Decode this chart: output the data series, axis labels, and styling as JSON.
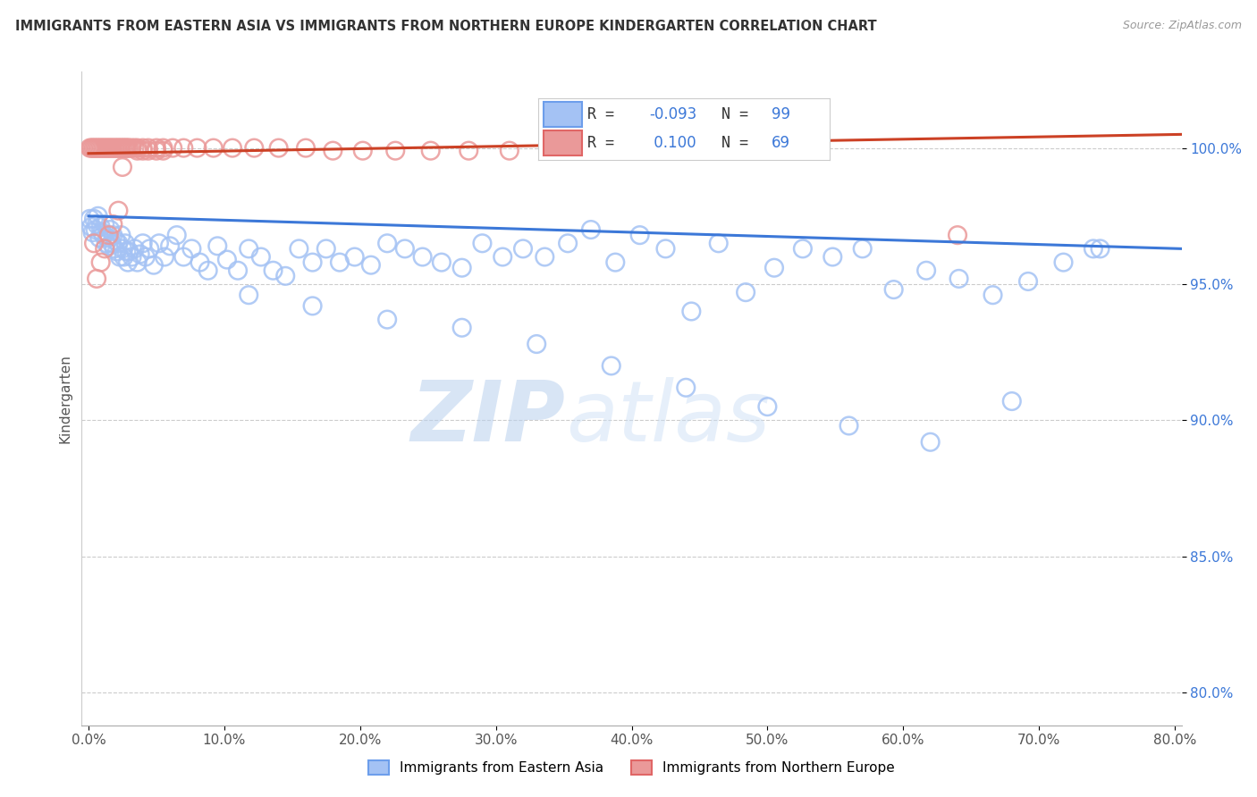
{
  "title": "IMMIGRANTS FROM EASTERN ASIA VS IMMIGRANTS FROM NORTHERN EUROPE KINDERGARTEN CORRELATION CHART",
  "source": "Source: ZipAtlas.com",
  "xlabel_ticks": [
    0.0,
    0.1,
    0.2,
    0.3,
    0.4,
    0.5,
    0.6,
    0.7,
    0.8
  ],
  "xlabel_labels": [
    "0.0%",
    "10.0%",
    "20.0%",
    "30.0%",
    "40.0%",
    "50.0%",
    "60.0%",
    "70.0%",
    "80.0%"
  ],
  "ylabel_ticks": [
    0.8,
    0.85,
    0.9,
    0.95,
    1.0
  ],
  "ylabel_labels": [
    "80.0%",
    "85.0%",
    "90.0%",
    "95.0%",
    "100.0%"
  ],
  "xlim": [
    -0.005,
    0.805
  ],
  "ylim": [
    0.788,
    1.028
  ],
  "ylabel": "Kindergarten",
  "blue_color": "#a4c2f4",
  "pink_color": "#ea9999",
  "blue_edge_color": "#6d9eeb",
  "pink_edge_color": "#e06666",
  "blue_line_color": "#3c78d8",
  "pink_line_color": "#cc4125",
  "R_blue": -0.093,
  "N_blue": 99,
  "R_pink": 0.1,
  "N_pink": 69,
  "watermark_zip": "ZIP",
  "watermark_atlas": "atlas",
  "legend_label_blue": "Immigrants from Eastern Asia",
  "legend_label_pink": "Immigrants from Northern Europe",
  "blue_scatter_x": [
    0.001,
    0.002,
    0.003,
    0.004,
    0.005,
    0.006,
    0.007,
    0.008,
    0.009,
    0.01,
    0.011,
    0.012,
    0.013,
    0.014,
    0.015,
    0.016,
    0.017,
    0.018,
    0.019,
    0.02,
    0.021,
    0.022,
    0.023,
    0.024,
    0.025,
    0.026,
    0.027,
    0.028,
    0.029,
    0.03,
    0.032,
    0.034,
    0.036,
    0.038,
    0.04,
    0.042,
    0.045,
    0.048,
    0.052,
    0.056,
    0.06,
    0.065,
    0.07,
    0.076,
    0.082,
    0.088,
    0.095,
    0.102,
    0.11,
    0.118,
    0.127,
    0.136,
    0.145,
    0.155,
    0.165,
    0.175,
    0.185,
    0.196,
    0.208,
    0.22,
    0.233,
    0.246,
    0.26,
    0.275,
    0.29,
    0.305,
    0.32,
    0.336,
    0.353,
    0.37,
    0.388,
    0.406,
    0.425,
    0.444,
    0.464,
    0.484,
    0.505,
    0.526,
    0.548,
    0.57,
    0.593,
    0.617,
    0.641,
    0.666,
    0.692,
    0.718,
    0.745,
    0.118,
    0.165,
    0.22,
    0.275,
    0.33,
    0.385,
    0.44,
    0.5,
    0.56,
    0.62,
    0.68,
    0.74
  ],
  "blue_scatter_y": [
    0.974,
    0.971,
    0.969,
    0.974,
    0.97,
    0.972,
    0.975,
    0.967,
    0.971,
    0.969,
    0.968,
    0.972,
    0.965,
    0.967,
    0.964,
    0.97,
    0.965,
    0.968,
    0.963,
    0.966,
    0.962,
    0.965,
    0.96,
    0.968,
    0.963,
    0.96,
    0.965,
    0.962,
    0.958,
    0.962,
    0.96,
    0.963,
    0.958,
    0.961,
    0.965,
    0.96,
    0.963,
    0.957,
    0.965,
    0.96,
    0.964,
    0.968,
    0.96,
    0.963,
    0.958,
    0.955,
    0.964,
    0.959,
    0.955,
    0.963,
    0.96,
    0.955,
    0.953,
    0.963,
    0.958,
    0.963,
    0.958,
    0.96,
    0.957,
    0.965,
    0.963,
    0.96,
    0.958,
    0.956,
    0.965,
    0.96,
    0.963,
    0.96,
    0.965,
    0.97,
    0.958,
    0.968,
    0.963,
    0.94,
    0.965,
    0.947,
    0.956,
    0.963,
    0.96,
    0.963,
    0.948,
    0.955,
    0.952,
    0.946,
    0.951,
    0.958,
    0.963,
    0.946,
    0.942,
    0.937,
    0.934,
    0.928,
    0.92,
    0.912,
    0.905,
    0.898,
    0.892,
    0.907,
    0.963
  ],
  "pink_scatter_x": [
    0.001,
    0.002,
    0.003,
    0.004,
    0.005,
    0.006,
    0.007,
    0.008,
    0.009,
    0.01,
    0.011,
    0.012,
    0.013,
    0.014,
    0.015,
    0.016,
    0.017,
    0.018,
    0.019,
    0.02,
    0.021,
    0.022,
    0.023,
    0.024,
    0.025,
    0.026,
    0.027,
    0.028,
    0.029,
    0.03,
    0.032,
    0.034,
    0.036,
    0.04,
    0.044,
    0.05,
    0.055,
    0.062,
    0.07,
    0.08,
    0.092,
    0.106,
    0.122,
    0.14,
    0.16,
    0.18,
    0.202,
    0.226,
    0.252,
    0.28,
    0.31,
    0.342,
    0.376,
    0.036,
    0.04,
    0.044,
    0.05,
    0.055,
    0.35,
    0.38,
    0.025,
    0.022,
    0.018,
    0.015,
    0.012,
    0.009,
    0.006,
    0.004,
    0.64
  ],
  "pink_scatter_y": [
    1.0,
    1.0,
    1.0,
    1.0,
    1.0,
    1.0,
    1.0,
    1.0,
    1.0,
    1.0,
    1.0,
    1.0,
    1.0,
    1.0,
    1.0,
    1.0,
    1.0,
    1.0,
    1.0,
    1.0,
    1.0,
    1.0,
    1.0,
    1.0,
    1.0,
    1.0,
    1.0,
    1.0,
    1.0,
    1.0,
    1.0,
    1.0,
    1.0,
    1.0,
    1.0,
    1.0,
    1.0,
    1.0,
    1.0,
    1.0,
    1.0,
    1.0,
    1.0,
    1.0,
    1.0,
    0.999,
    0.999,
    0.999,
    0.999,
    0.999,
    0.999,
    0.999,
    0.999,
    0.999,
    0.999,
    0.999,
    0.999,
    0.999,
    0.999,
    0.999,
    0.993,
    0.977,
    0.972,
    0.968,
    0.963,
    0.958,
    0.952,
    0.965,
    0.968
  ],
  "blue_trendline_x": [
    0.0,
    0.805
  ],
  "blue_trendline_y": [
    0.975,
    0.963
  ],
  "pink_trendline_x": [
    0.0,
    0.805
  ],
  "pink_trendline_y": [
    0.998,
    1.005
  ]
}
